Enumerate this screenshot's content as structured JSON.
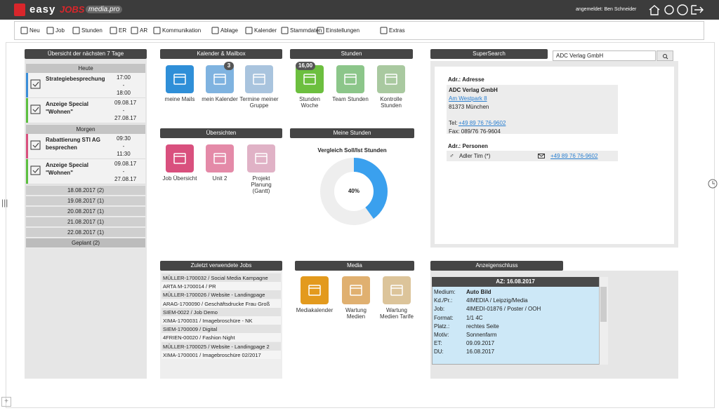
{
  "header": {
    "logo": {
      "brand": "easy",
      "product": "JOBS",
      "edition": "media.pro"
    },
    "user": "angemeldet: Ben Schneider"
  },
  "toolbar": [
    "Neu",
    "Job",
    "Stunden",
    "ER",
    "AR",
    "Kommunikation",
    "Ablage",
    "Kalender",
    "Stammdaten",
    "Einstellungen",
    "Extras"
  ],
  "week_overview": {
    "title": "Übersicht der nächsten 7 Tage",
    "days": [
      {
        "label": "Heute",
        "items": [
          {
            "title": "Strategiebesprechung",
            "times": [
              "17:00",
              "-",
              "18:00"
            ]
          },
          {
            "title": "Anzeige Special \"Wohnen\"",
            "times": [
              "09.08.17",
              "-",
              "27.08.17"
            ]
          }
        ]
      },
      {
        "label": "Morgen",
        "items": [
          {
            "title": "Rabattierung STI AG besprechen",
            "times": [
              "09:30",
              "-",
              "11:30"
            ]
          },
          {
            "title": "Anzeige Special \"Wohnen\"",
            "times": [
              "09.08.17",
              "-",
              "27.08.17"
            ]
          }
        ]
      }
    ],
    "more": [
      "18.08.2017 (2)",
      "19.08.2017 (1)",
      "20.08.2017 (1)",
      "21.08.2017 (1)",
      "22.08.2017 (1)",
      "Geplant (2)"
    ]
  },
  "calendar_mailbox": {
    "title": "Kalender & Mailbox",
    "tiles": [
      {
        "label": "meine Mails"
      },
      {
        "label": "mein Kalender",
        "badge": "3"
      },
      {
        "label": "Termine meiner Gruppe"
      }
    ]
  },
  "hours": {
    "title": "Stunden",
    "tiles": [
      {
        "label": "Stunden Woche",
        "badge": "16,00"
      },
      {
        "label": "Team Stunden"
      },
      {
        "label": "Kontrolle Stunden"
      }
    ]
  },
  "overviews": {
    "title": "Übersichten",
    "tiles": [
      {
        "label": "Job Übersicht"
      },
      {
        "label": "Unit 2"
      },
      {
        "label": "Projekt Planung (Gantt)"
      }
    ]
  },
  "my_hours": {
    "title": "Meine Stunden",
    "subtitle": "Vergleich Soll/Ist Stunden",
    "donut": {
      "value": 40,
      "label": "40%"
    }
  },
  "supersearch": {
    "title": "SuperSearch",
    "query": "ADC Verlag GmbH",
    "address": {
      "heading": "Adr.: Adresse",
      "name": "ADC Verlag GmbH",
      "street": "Am Westpark 8",
      "city": "81373 München",
      "tel_label": "Tel:",
      "tel": "+49 89 76 76-9602",
      "fax": "Fax: 089/76 76-9604"
    },
    "persons": {
      "heading": "Adr.: Personen",
      "rows": [
        {
          "name": "Adler Tim (*)",
          "phone": "+49 89 76 76-9602"
        }
      ]
    }
  },
  "recent_jobs": {
    "title": "Zuletzt verwendete Jobs",
    "rows": [
      "MÜLLER-1700032 / Social Media Kampagne",
      "ARTA M-1700014 / PR",
      "MÜLLER-1700026 / Website - Landingpage",
      "ARAG-1700090 / Geschäftsdrucke Frau Groß",
      "SIEM-0022 / Job Demo",
      "XIMA-1700031 / Imagebroschüre - NK",
      "SIEM-1700009 / Digital",
      "4FRIEN-00020 / Fashion Night",
      "MÜLLER-1700025 / Website - Landingpage 2",
      "XIMA-1700001 / Imagebroschüre 02/2017"
    ]
  },
  "media": {
    "title": "Media",
    "tiles": [
      {
        "label": "Mediakalender"
      },
      {
        "label": "Wartung Medien"
      },
      {
        "label": "Wartung Medien Tarife"
      }
    ]
  },
  "ad_deadline": {
    "title": "Anzeigenschluss",
    "header": "AZ: 16.08.2017",
    "rows": [
      [
        "Medium:",
        "Auto Bild"
      ],
      [
        "Kd./Pr.:",
        "4IMEDIA / Leipzig/Media"
      ],
      [
        "Job:",
        "4IMEDI-01876 / Poster / OOH"
      ],
      [
        "Format:",
        "1/1 4C"
      ],
      [
        "Platz.:",
        "rechtes Seite"
      ],
      [
        "Motiv:",
        "Sonnenfarm"
      ],
      [
        "ET:",
        "09.09.2017"
      ],
      [
        "DU:",
        "16.08.2017"
      ]
    ]
  }
}
